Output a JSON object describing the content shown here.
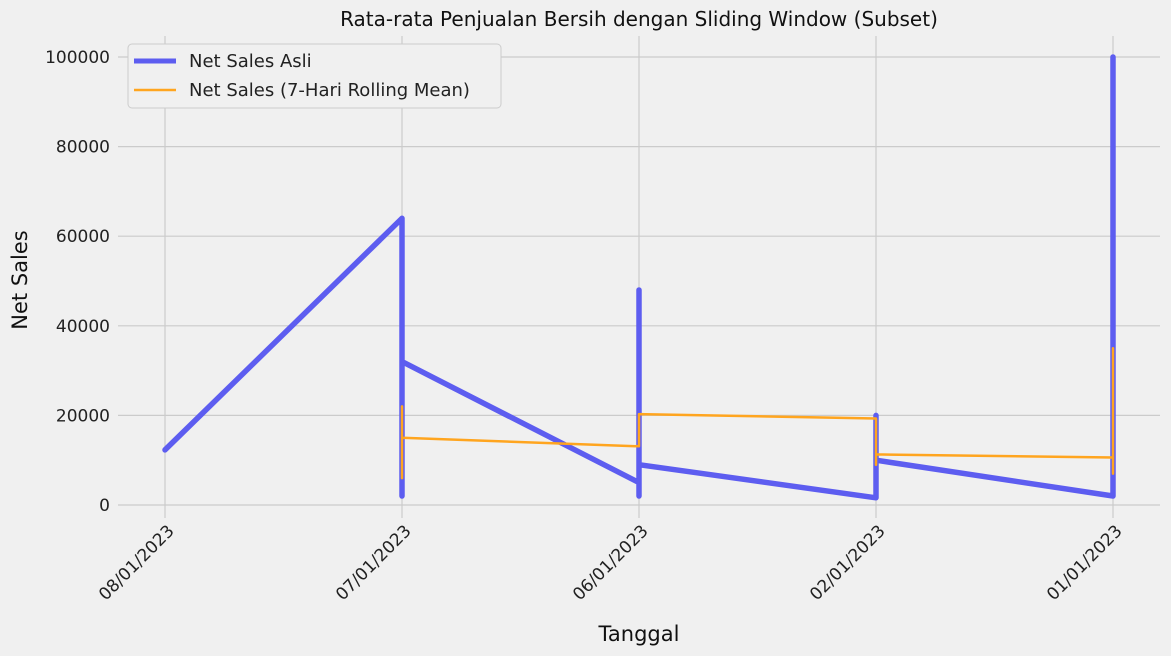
{
  "chart_data": {
    "type": "line",
    "title": "Rata-rata Penjualan Bersih dengan Sliding Window (Subset)",
    "xlabel": "Tanggal",
    "ylabel": "Net Sales",
    "categories": [
      "08/01/2023",
      "07/01/2023",
      "06/01/2023",
      "02/01/2023",
      "01/01/2023"
    ],
    "ylim": [
      -3000,
      105000
    ],
    "yticks": [
      0,
      20000,
      40000,
      60000,
      80000,
      100000
    ],
    "grid": true,
    "legend_position": "top-left",
    "series": [
      {
        "name": "Net Sales Asli",
        "color": "#5d5df0",
        "points": [
          [
            0,
            12300
          ],
          [
            1,
            64000
          ],
          [
            1,
            2000
          ],
          [
            1,
            40000
          ],
          [
            1,
            32000
          ],
          [
            2,
            5000
          ],
          [
            2,
            48000
          ],
          [
            2,
            2000
          ],
          [
            2,
            9000
          ],
          [
            3,
            1600
          ],
          [
            3,
            20000
          ],
          [
            3,
            10000
          ],
          [
            4,
            2000
          ],
          [
            4,
            100000
          ],
          [
            4,
            2000
          ],
          [
            4,
            40000
          ],
          [
            4,
            2000
          ]
        ]
      },
      {
        "name": "Net Sales (7-Hari Rolling Mean)",
        "color": "#ffa51f",
        "points": [
          [
            1,
            22000
          ],
          [
            1,
            6000
          ],
          [
            1,
            15000
          ],
          [
            2,
            13100
          ],
          [
            2,
            20300
          ],
          [
            3,
            19300
          ],
          [
            3,
            9000
          ],
          [
            3,
            11300
          ],
          [
            4,
            10600
          ],
          [
            4,
            35000
          ],
          [
            4,
            7000
          ]
        ]
      }
    ]
  }
}
